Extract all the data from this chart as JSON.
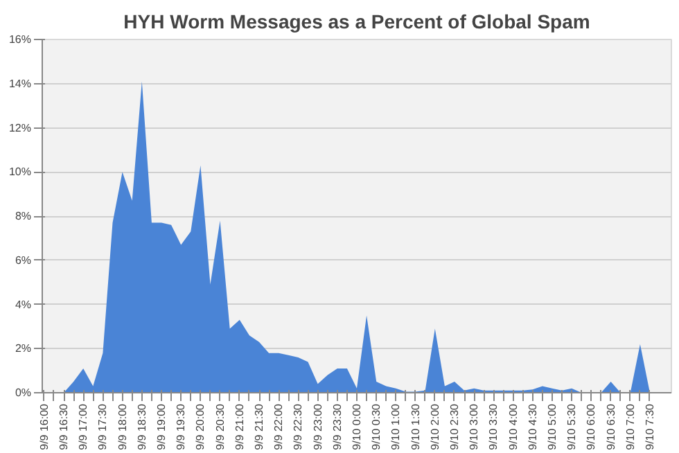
{
  "chart_data": {
    "type": "area",
    "title": "HYH Worm Messages as a Percent of Global Spam",
    "categories": [
      "9/9 16:00",
      null,
      "9/9 16:30",
      null,
      "9/9 17:00",
      null,
      "9/9 17:30",
      null,
      "9/9 18:00",
      null,
      "9/9 18:30",
      null,
      "9/9 19:00",
      null,
      "9/9 19:30",
      null,
      "9/9 20:00",
      null,
      "9/9 20:30",
      null,
      "9/9 21:00",
      null,
      "9/9 21:30",
      null,
      "9/9 22:00",
      null,
      "9/9 22:30",
      null,
      "9/9 23:00",
      null,
      "9/9 23:30",
      null,
      "9/10 0:00",
      null,
      "9/10 0:30",
      null,
      "9/10 1:00",
      null,
      "9/10 1:30",
      null,
      "9/10 2:00",
      null,
      "9/10 2:30",
      null,
      "9/10 3:00",
      null,
      "9/10 3:30",
      null,
      "9/10 4:00",
      null,
      "9/10 4:30",
      null,
      "9/10 5:00",
      null,
      "9/10 5:30",
      null,
      "9/10 6:00",
      null,
      "9/10 6:30",
      null,
      "9/10 7:00",
      null,
      "9/10 7:30"
    ],
    "series": [
      {
        "color": "#4a84d6",
        "values": [
          0,
          0,
          0,
          0.5,
          1.1,
          0.3,
          1.8,
          7.7,
          10.0,
          8.7,
          14.1,
          7.7,
          7.7,
          7.6,
          6.7,
          7.3,
          10.3,
          4.9,
          7.8,
          2.9,
          3.3,
          2.6,
          2.3,
          1.8,
          1.8,
          1.7,
          1.6,
          1.4,
          0.4,
          0.8,
          1.1,
          1.1,
          0.2,
          3.5,
          0.5,
          0.3,
          0.2,
          0.05,
          0.05,
          0.1,
          2.9,
          0.3,
          0.5,
          0.1,
          0.2,
          0.1,
          0.1,
          0.1,
          0.1,
          0.1,
          0.15,
          0.3,
          0.2,
          0.1,
          0.2,
          0,
          0,
          0,
          0.5,
          0,
          0,
          2.2,
          0
        ]
      }
    ],
    "ylim": [
      0,
      16
    ],
    "yticks": [
      {
        "value": 0,
        "label": "0%"
      },
      {
        "value": 2,
        "label": "2%"
      },
      {
        "value": 4,
        "label": "4%"
      },
      {
        "value": 6,
        "label": "6%"
      },
      {
        "value": 8,
        "label": "8%"
      },
      {
        "value": 10,
        "label": "10%"
      },
      {
        "value": 12,
        "label": "12%"
      },
      {
        "value": 14,
        "label": "14%"
      },
      {
        "value": 16,
        "label": "16%"
      }
    ],
    "grid": "y"
  }
}
